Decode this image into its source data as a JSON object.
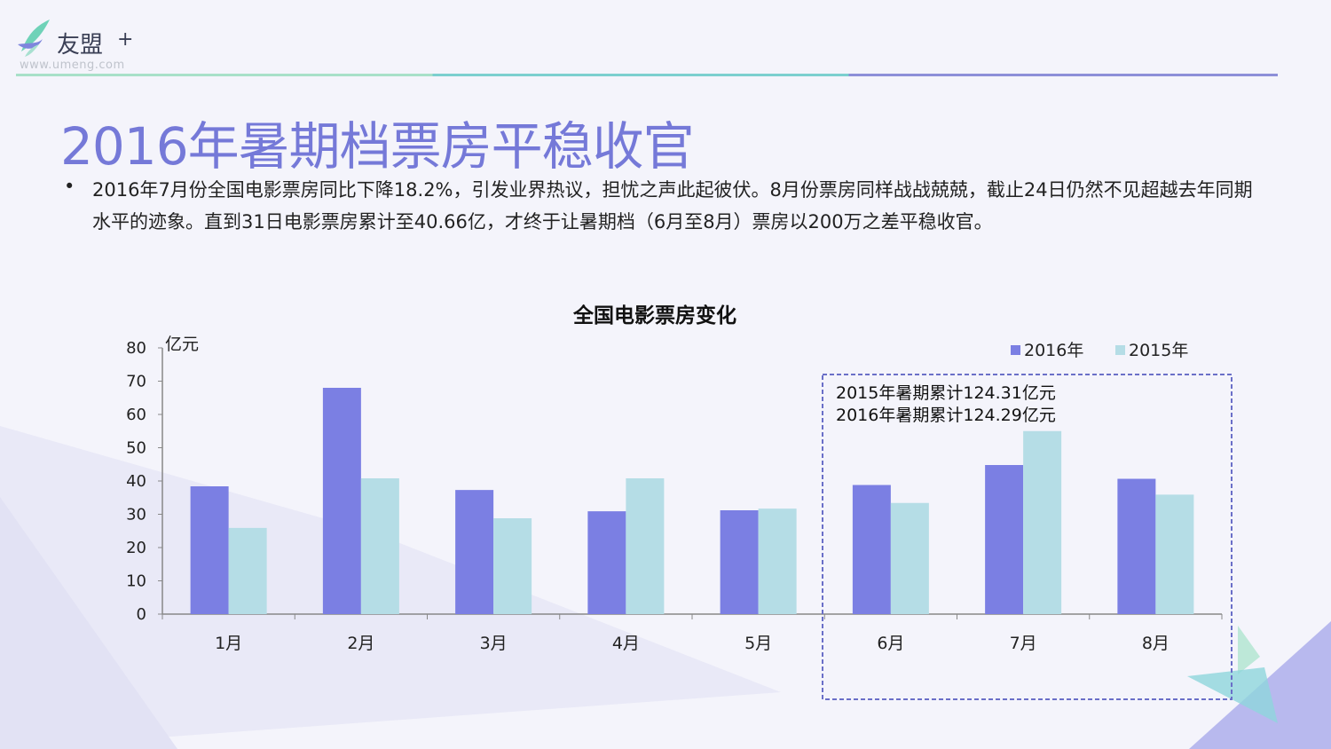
{
  "logo": {
    "name": "友盟",
    "plus": "+",
    "url": "www.umeng.com"
  },
  "title": "2016年暑期档票房平稳收官",
  "paragraph": "2016年7月份全国电影票房同比下降18.2%，引发业界热议，担忧之声此起彼伏。8月份票房同样战战兢兢，截止24日仍然不见超越去年同期水平的迹象。直到31日电影票房累计至40.66亿，才终于让暑期档（6月至8月）票房以200万之差平稳收官。",
  "chart_data": {
    "type": "bar",
    "title": "全国电影票房变化",
    "ylabel": "亿元",
    "ylim": [
      0,
      80
    ],
    "yticks": [
      0,
      10,
      20,
      30,
      40,
      50,
      60,
      70,
      80
    ],
    "categories": [
      "1月",
      "2月",
      "3月",
      "4月",
      "5月",
      "6月",
      "7月",
      "8月"
    ],
    "series": [
      {
        "name": "2016年",
        "color": "#7b7fe3",
        "values": [
          38.4,
          68,
          37.3,
          30.9,
          31.2,
          38.8,
          44.8,
          40.66
        ]
      },
      {
        "name": "2015年",
        "color": "#b5dde6",
        "values": [
          25.9,
          40.8,
          28.8,
          40.8,
          31.7,
          33.4,
          55,
          35.9
        ]
      }
    ],
    "legend_position": "top-right",
    "annotation": [
      "2015年暑期累计124.31亿元",
      "2016年暑期累计124.29亿元"
    ]
  }
}
